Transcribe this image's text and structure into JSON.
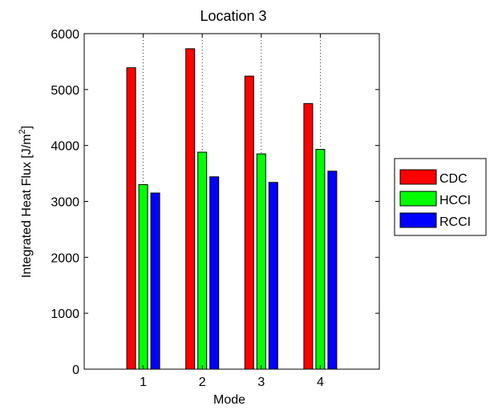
{
  "chart_data": {
    "type": "bar",
    "title": "Location 3",
    "xlabel": "Mode",
    "ylabel": "Integrated Heat Flux [J/m",
    "ylabel_superscript": "2",
    "ylabel_suffix": "]",
    "categories": [
      "1",
      "2",
      "3",
      "4"
    ],
    "xlim": [
      0,
      5
    ],
    "ylim": [
      0,
      6000
    ],
    "yticks": [
      0,
      1000,
      2000,
      3000,
      4000,
      5000,
      6000
    ],
    "grid": "x-dotted",
    "legend_position": "outside-right",
    "series": [
      {
        "name": "CDC",
        "color": "#ff0000",
        "values": [
          5390,
          5730,
          5240,
          4750
        ]
      },
      {
        "name": "HCCI",
        "color": "#00ff00",
        "values": [
          3300,
          3880,
          3850,
          3930
        ]
      },
      {
        "name": "RCCI",
        "color": "#0000ff",
        "values": [
          3150,
          3440,
          3340,
          3540
        ]
      }
    ]
  }
}
